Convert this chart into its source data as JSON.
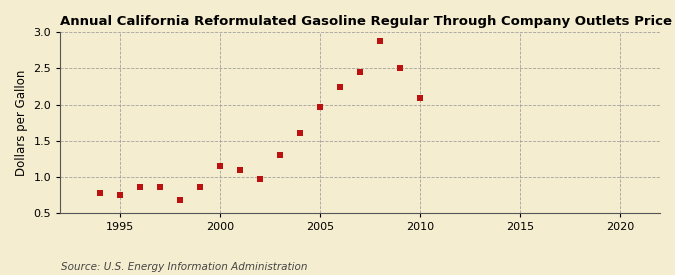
{
  "title": "Annual California Reformulated Gasoline Regular Through Company Outlets Price by All Sellers",
  "ylabel": "Dollars per Gallon",
  "source": "Source: U.S. Energy Information Administration",
  "years": [
    1994,
    1995,
    1996,
    1997,
    1998,
    1999,
    2000,
    2001,
    2002,
    2003,
    2004,
    2005,
    2006,
    2007,
    2008,
    2009,
    2010
  ],
  "values": [
    0.78,
    0.75,
    0.86,
    0.86,
    0.68,
    0.86,
    1.15,
    1.1,
    0.97,
    1.3,
    1.61,
    1.96,
    2.24,
    2.45,
    2.88,
    2.51,
    2.09
  ],
  "xlim": [
    1992,
    2022
  ],
  "ylim": [
    0.5,
    3.0
  ],
  "xticks": [
    1995,
    2000,
    2005,
    2010,
    2015,
    2020
  ],
  "yticks": [
    0.5,
    1.0,
    1.5,
    2.0,
    2.5,
    3.0
  ],
  "marker_color": "#bb1111",
  "marker": "s",
  "marker_size": 5,
  "bg_color": "#f5edcf",
  "grid_color": "#999999",
  "title_fontsize": 9.5,
  "label_fontsize": 8.5,
  "tick_fontsize": 8,
  "source_fontsize": 7.5
}
